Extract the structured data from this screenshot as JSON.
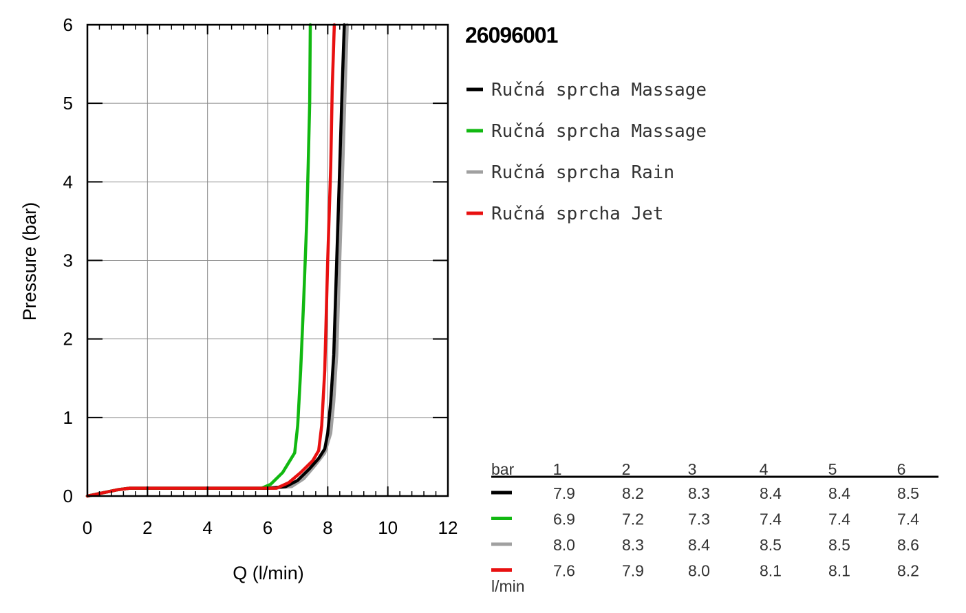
{
  "chart_data": {
    "type": "line",
    "title": "26096001",
    "xlabel": "Q (l/min)",
    "ylabel": "Pressure (bar)",
    "xlim": [
      0,
      12
    ],
    "ylim": [
      0,
      6
    ],
    "x_ticks": [
      "0",
      "2",
      "4",
      "6",
      "8",
      "10",
      "12"
    ],
    "y_ticks": [
      "0",
      "1",
      "2",
      "3",
      "4",
      "5",
      "6"
    ],
    "grid": true,
    "legend_position": "right",
    "series": [
      {
        "name": "Ručná sprcha Massage",
        "color": "#000000",
        "points": [
          [
            0,
            0
          ],
          [
            0.5,
            0.04
          ],
          [
            1.0,
            0.08
          ],
          [
            1.4,
            0.1
          ],
          [
            3,
            0.1
          ],
          [
            5,
            0.1
          ],
          [
            6,
            0.1
          ],
          [
            6.6,
            0.12
          ],
          [
            7.0,
            0.2
          ],
          [
            7.4,
            0.35
          ],
          [
            7.7,
            0.48
          ],
          [
            7.9,
            0.6
          ],
          [
            8.0,
            0.8
          ],
          [
            8.1,
            1.2
          ],
          [
            8.2,
            1.8
          ],
          [
            8.3,
            3.0
          ],
          [
            8.4,
            4.2
          ],
          [
            8.48,
            5.2
          ],
          [
            8.55,
            6.0
          ]
        ]
      },
      {
        "name": "Ručná sprcha Massage",
        "color": "#11b811",
        "points": [
          [
            0,
            0
          ],
          [
            0.5,
            0.04
          ],
          [
            1.0,
            0.08
          ],
          [
            1.4,
            0.1
          ],
          [
            3,
            0.1
          ],
          [
            5,
            0.1
          ],
          [
            5.8,
            0.1
          ],
          [
            6.1,
            0.15
          ],
          [
            6.5,
            0.3
          ],
          [
            6.9,
            0.55
          ],
          [
            7.0,
            0.9
          ],
          [
            7.1,
            1.6
          ],
          [
            7.2,
            2.5
          ],
          [
            7.3,
            3.5
          ],
          [
            7.35,
            4.2
          ],
          [
            7.4,
            5.0
          ],
          [
            7.42,
            6.0
          ]
        ]
      },
      {
        "name": "Ručná sprcha Rain",
        "color": "#a0a0a0",
        "points": [
          [
            0,
            0
          ],
          [
            0.5,
            0.04
          ],
          [
            1.0,
            0.08
          ],
          [
            1.4,
            0.1
          ],
          [
            3,
            0.1
          ],
          [
            5,
            0.1
          ],
          [
            6.2,
            0.1
          ],
          [
            6.8,
            0.12
          ],
          [
            7.2,
            0.22
          ],
          [
            7.6,
            0.4
          ],
          [
            7.9,
            0.55
          ],
          [
            8.1,
            0.8
          ],
          [
            8.2,
            1.2
          ],
          [
            8.3,
            1.8
          ],
          [
            8.4,
            3.0
          ],
          [
            8.5,
            4.2
          ],
          [
            8.58,
            5.2
          ],
          [
            8.65,
            6.0
          ]
        ]
      },
      {
        "name": "Ručná sprcha Jet",
        "color": "#e81010",
        "points": [
          [
            0,
            0
          ],
          [
            0.5,
            0.04
          ],
          [
            1.0,
            0.08
          ],
          [
            1.4,
            0.1
          ],
          [
            3,
            0.1
          ],
          [
            5,
            0.1
          ],
          [
            6.3,
            0.1
          ],
          [
            6.7,
            0.17
          ],
          [
            7.1,
            0.3
          ],
          [
            7.5,
            0.45
          ],
          [
            7.7,
            0.58
          ],
          [
            7.8,
            0.9
          ],
          [
            7.9,
            1.6
          ],
          [
            8.0,
            3.0
          ],
          [
            8.1,
            4.2
          ],
          [
            8.15,
            5.2
          ],
          [
            8.22,
            6.0
          ]
        ]
      }
    ],
    "table": {
      "header_label": "bar",
      "footer_label": "l/min",
      "columns": [
        "1",
        "2",
        "3",
        "4",
        "5",
        "6"
      ],
      "rows": [
        {
          "color": "#000000",
          "values": [
            "7.9",
            "8.2",
            "8.3",
            "8.4",
            "8.4",
            "8.5"
          ]
        },
        {
          "color": "#11b811",
          "values": [
            "6.9",
            "7.2",
            "7.3",
            "7.4",
            "7.4",
            "7.4"
          ]
        },
        {
          "color": "#a0a0a0",
          "values": [
            "8.0",
            "8.3",
            "8.4",
            "8.5",
            "8.5",
            "8.6"
          ]
        },
        {
          "color": "#e81010",
          "values": [
            "7.6",
            "7.9",
            "8.0",
            "8.1",
            "8.1",
            "8.2"
          ]
        }
      ]
    }
  }
}
